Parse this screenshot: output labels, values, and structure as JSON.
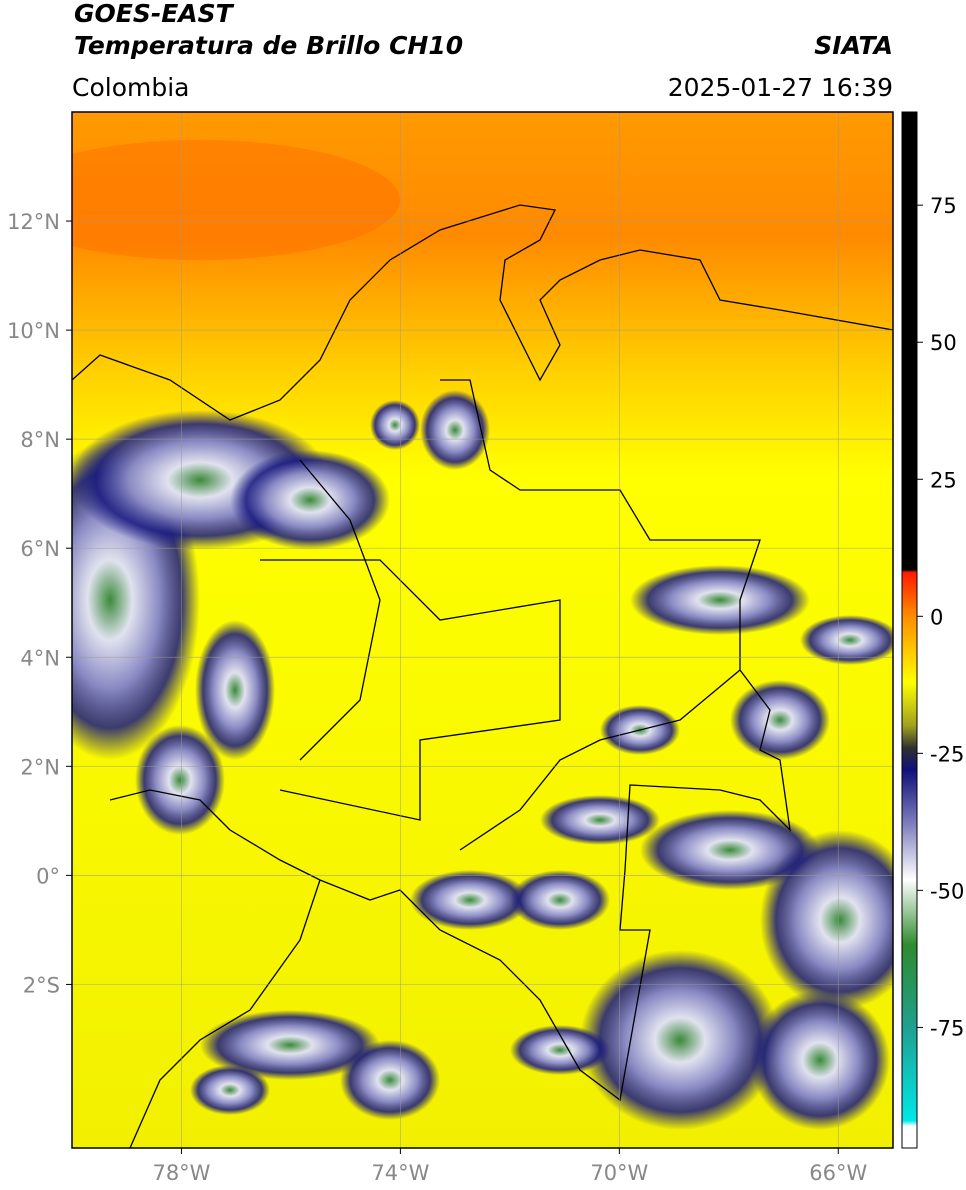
{
  "header": {
    "satellite": "GOES-EAST",
    "product": "Temperatura de Brillo CH10",
    "source": "SIATA",
    "region": "Colombia",
    "datetime": "2025-01-27 16:39"
  },
  "map": {
    "xlim": [
      -80,
      -65
    ],
    "ylim": [
      -5,
      14
    ],
    "xticks": [
      {
        "value": -78,
        "label": "78°W"
      },
      {
        "value": -74,
        "label": "74°W"
      },
      {
        "value": -70,
        "label": "70°W"
      },
      {
        "value": -66,
        "label": "66°W"
      }
    ],
    "yticks": [
      {
        "value": 12,
        "label": "12°N"
      },
      {
        "value": 10,
        "label": "10°N"
      },
      {
        "value": 8,
        "label": "8°N"
      },
      {
        "value": 6,
        "label": "6°N"
      },
      {
        "value": 4,
        "label": "4°N"
      },
      {
        "value": 2,
        "label": "2°N"
      },
      {
        "value": 0,
        "label": "0°"
      },
      {
        "value": -2,
        "label": "2°S"
      }
    ],
    "grid": true
  },
  "colorbar": {
    "lim": [
      -97,
      92
    ],
    "ticks": [
      75,
      50,
      25,
      0,
      -25,
      -50,
      -75
    ],
    "stops": [
      {
        "value": 92,
        "color": "#000000"
      },
      {
        "value": 8.5,
        "color": "#000000"
      },
      {
        "value": 8,
        "color": "#ff1a00"
      },
      {
        "value": 0,
        "color": "#ff8c00"
      },
      {
        "value": -12,
        "color": "#ffff00"
      },
      {
        "value": -20,
        "color": "#a0a020"
      },
      {
        "value": -24,
        "color": "#303030"
      },
      {
        "value": -28,
        "color": "#10107a"
      },
      {
        "value": -38,
        "color": "#8080c0"
      },
      {
        "value": -48,
        "color": "#ffffff"
      },
      {
        "value": -60,
        "color": "#2e8b2e"
      },
      {
        "value": -75,
        "color": "#20a090"
      },
      {
        "value": -92,
        "color": "#00e8e8"
      },
      {
        "value": -93,
        "color": "#ffffff"
      },
      {
        "value": -97,
        "color": "#ffffff"
      }
    ]
  }
}
